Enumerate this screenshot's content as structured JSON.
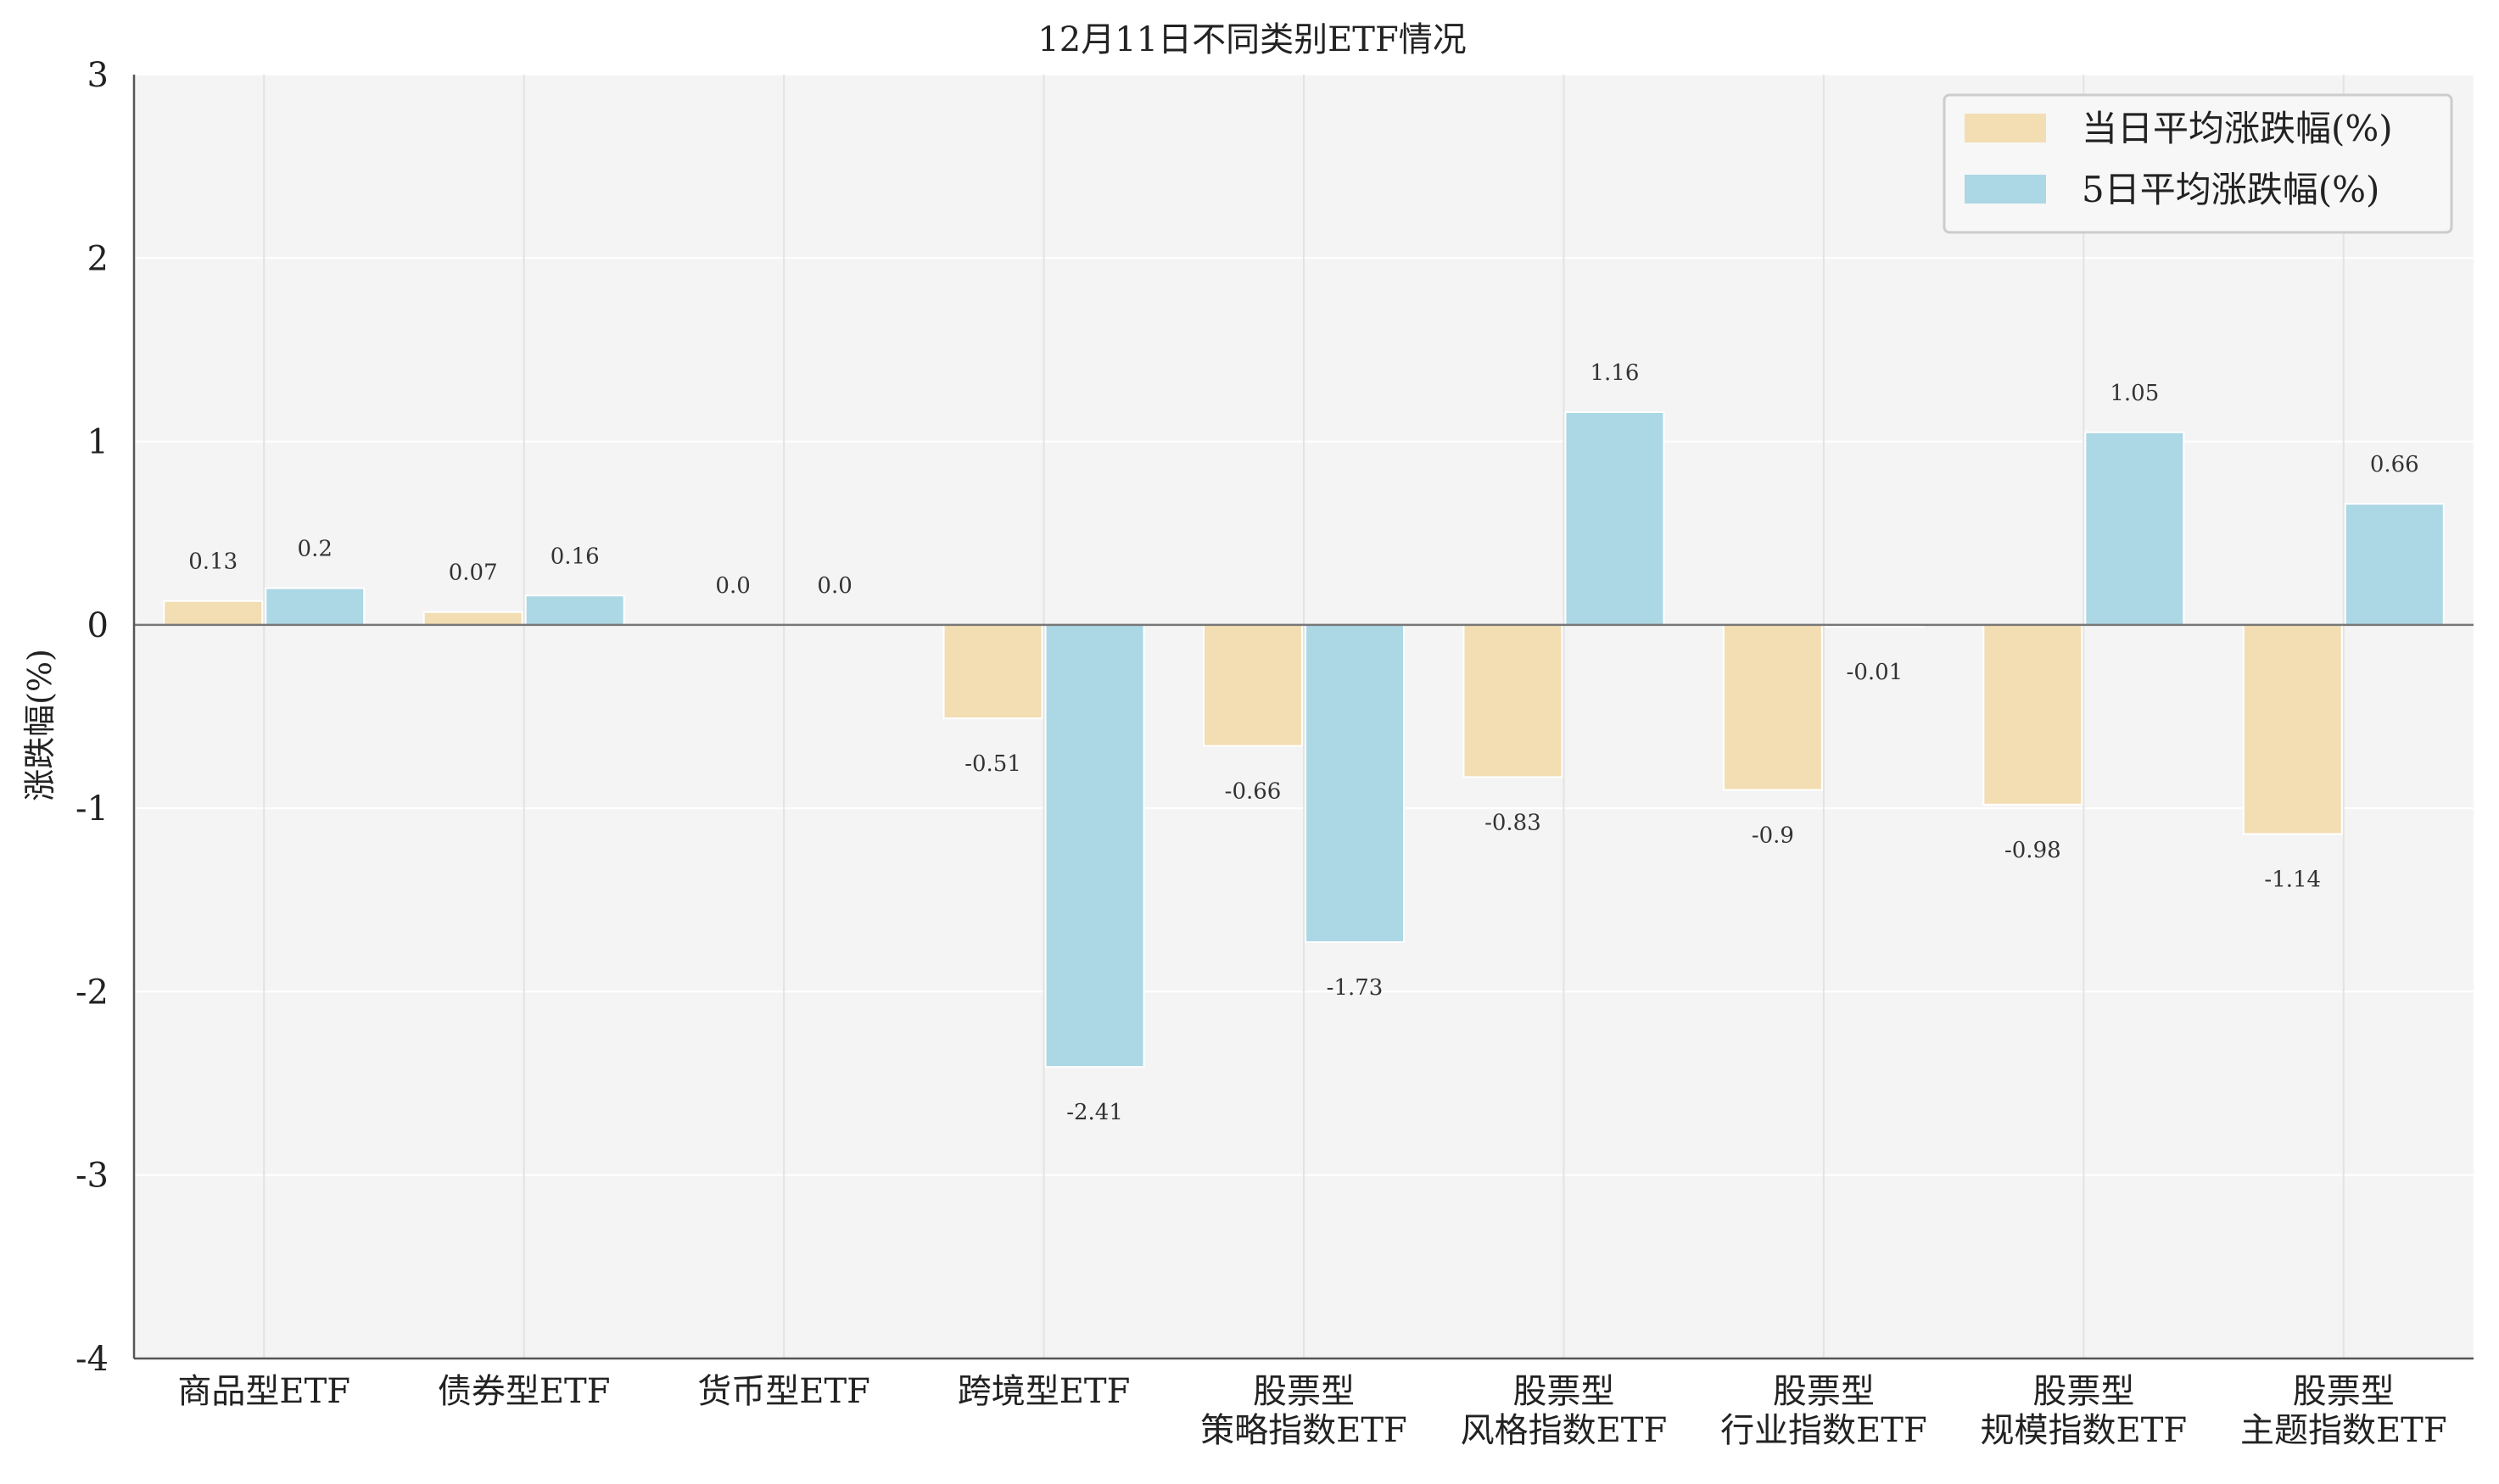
{
  "chart_data": {
    "type": "bar",
    "title": "12月11日不同类别ETF情况",
    "xlabel": "",
    "ylabel": "涨跌幅(%)",
    "ylim": [
      -4,
      3
    ],
    "yticks": [
      "3",
      "2",
      "1",
      "0",
      "-1",
      "-2",
      "-3",
      "-4"
    ],
    "grid": true,
    "legend_position": "top-right",
    "categories": [
      [
        "商品型ETF"
      ],
      [
        "债券型ETF"
      ],
      [
        "货币型ETF"
      ],
      [
        "跨境型ETF"
      ],
      [
        "股票型",
        "策略指数ETF"
      ],
      [
        "股票型",
        "风格指数ETF"
      ],
      [
        "股票型",
        "行业指数ETF"
      ],
      [
        "股票型",
        "规模指数ETF"
      ],
      [
        "股票型",
        "主题指数ETF"
      ]
    ],
    "series": [
      {
        "name": "当日平均涨跌幅(%)",
        "color": "#f3ddb2",
        "values": [
          0.13,
          0.07,
          0.0,
          -0.51,
          -0.66,
          -0.83,
          -0.9,
          -0.98,
          -1.14
        ],
        "labels": [
          "0.13",
          "0.07",
          "0.0",
          "-0.51",
          "-0.66",
          "-0.83",
          "-0.9",
          "-0.98",
          "-1.14"
        ]
      },
      {
        "name": "5日平均涨跌幅(%)",
        "color": "#acd7e5",
        "values": [
          0.2,
          0.16,
          0.0,
          -2.41,
          -1.73,
          1.16,
          -0.01,
          1.05,
          0.66
        ],
        "labels": [
          "0.2",
          "0.16",
          "0.0",
          "-2.41",
          "-1.73",
          "1.16",
          "-0.01",
          "1.05",
          "0.66"
        ]
      }
    ],
    "colors": {
      "plot_background": "#f4f4f4",
      "grid": "#ffffff",
      "category_line": "#e3e3e3",
      "axis": "#555555",
      "zero_line": "#777777"
    }
  }
}
